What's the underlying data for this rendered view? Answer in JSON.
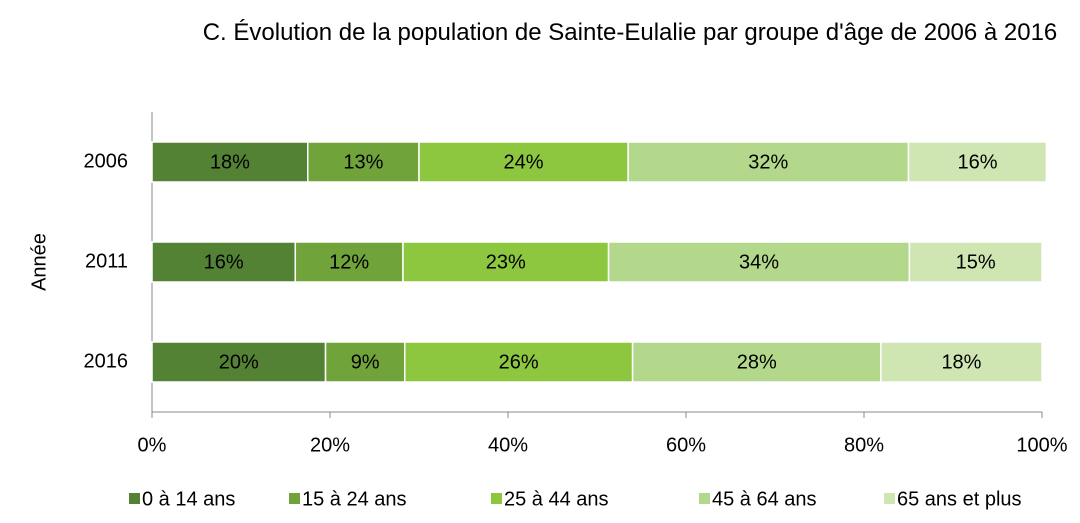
{
  "chart_data": {
    "type": "stacked_bar_horizontal",
    "title": "C. Évolution de la population de Sainte-Eulalie par groupe d'âge de 2006 à 2016",
    "y_label": "Année",
    "categories": [
      "2006",
      "2011",
      "2016"
    ],
    "series": [
      {
        "name": "0 à 14 ans",
        "color": "#548235",
        "values": [
          17.5,
          16.1,
          19.5
        ],
        "value_labels": [
          "18%",
          "16%",
          "20%"
        ]
      },
      {
        "name": "15 à 24 ans",
        "color": "#70a33a",
        "values": [
          12.5,
          12.1,
          8.9
        ],
        "value_labels": [
          "13%",
          "12%",
          "9%"
        ]
      },
      {
        "name": "25 à 44 ans",
        "color": "#8dc63f",
        "values": [
          23.5,
          23.1,
          25.6
        ],
        "value_labels": [
          "24%",
          "23%",
          "26%"
        ]
      },
      {
        "name": "45 à 64 ans",
        "color": "#b3d88b",
        "values": [
          31.5,
          33.8,
          27.9
        ],
        "value_labels": [
          "32%",
          "34%",
          "28%"
        ]
      },
      {
        "name": "65 ans et plus",
        "color": "#cfe6b3",
        "values": [
          15.5,
          14.9,
          18.1
        ],
        "value_labels": [
          "16%",
          "15%",
          "18%"
        ]
      }
    ],
    "xlim": [
      0,
      100
    ],
    "xticks": [
      {
        "value": 0,
        "label": "0%"
      },
      {
        "value": 20,
        "label": "20%"
      },
      {
        "value": 40,
        "label": "40%"
      },
      {
        "value": 60,
        "label": "60%"
      },
      {
        "value": 80,
        "label": "80%"
      },
      {
        "value": 100,
        "label": "100%"
      }
    ],
    "legend": "bottom"
  }
}
